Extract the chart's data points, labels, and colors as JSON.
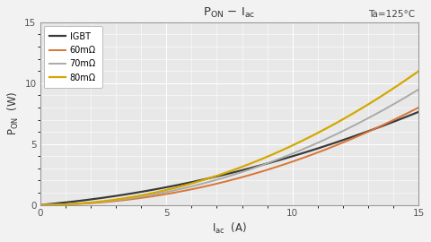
{
  "title_main": "P",
  "title_sub_on": "ON",
  "title_dash": " – ",
  "title_i": "I",
  "title_sub_ac": "ac",
  "annotation": "Ta=125°C",
  "xlabel_main": "I",
  "xlabel_sub": "ac",
  "xlabel_unit": "  (A)",
  "ylabel": "P",
  "ylabel_sub": "ON",
  "ylabel_unit": "  (W)",
  "xlim": [
    0,
    15
  ],
  "ylim": [
    0,
    15
  ],
  "xticks": [
    0,
    5,
    10,
    15
  ],
  "yticks": [
    0,
    5,
    10,
    15
  ],
  "curves": [
    {
      "label": "IGBT",
      "color": "#3a3a3a",
      "linewidth": 1.6,
      "type": "igbt",
      "a": 0.18,
      "b": 0.022
    },
    {
      "label": "60mΩ",
      "color": "#d97535",
      "linewidth": 1.4,
      "type": "mosfet",
      "rds_eff": 0.0356
    },
    {
      "label": "70mΩ",
      "color": "#aaaaaa",
      "linewidth": 1.4,
      "type": "mosfet",
      "rds_eff": 0.0422
    },
    {
      "label": "80mΩ",
      "color": "#d4a800",
      "linewidth": 1.6,
      "type": "mosfet",
      "rds_eff": 0.0489
    }
  ],
  "plot_bg": "#e8e8e8",
  "figure_bg": "#f2f2f2",
  "grid_color": "#ffffff",
  "grid_lw": 0.7,
  "spine_color": "#999999",
  "tick_color": "#555555"
}
